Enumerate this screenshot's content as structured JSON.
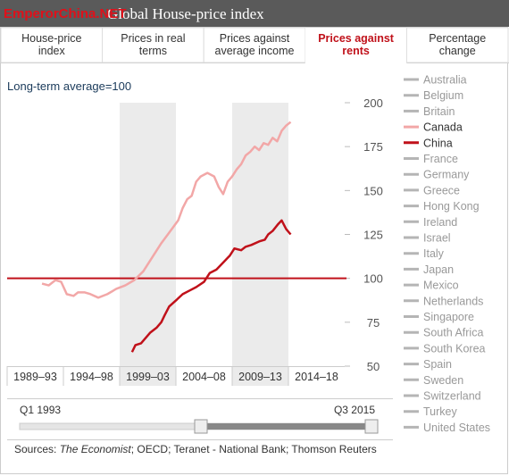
{
  "header": {
    "title": "Global House-price index",
    "watermark": "EmperorChina.NET"
  },
  "tabs": [
    "House-price index",
    "Prices in real terms",
    "Prices against average income",
    "Prices against rents",
    "Percentage change"
  ],
  "active_tab": 3,
  "chart_data": {
    "type": "line",
    "subtitle": "Long-term average=100",
    "xlim": [
      1989,
      2019
    ],
    "ylim": [
      50,
      200
    ],
    "yticks": [
      50,
      75,
      100,
      125,
      150,
      175,
      200
    ],
    "xticks": [
      {
        "value": 1989,
        "label": "1989–93"
      },
      {
        "value": 1994,
        "label": "1994–98"
      },
      {
        "value": 1999,
        "label": "1999–03"
      },
      {
        "value": 2004,
        "label": "2004–08"
      },
      {
        "value": 2009,
        "label": "2009–13"
      },
      {
        "value": 2014,
        "label": "2014–18"
      }
    ],
    "shaded_bands": [
      [
        1999,
        2004
      ],
      [
        2009,
        2014
      ]
    ],
    "reference_line": 100,
    "series": [
      {
        "name": "Canada",
        "color": "#f2a7a7",
        "x": [
          1992.1,
          1992.7,
          1993.3,
          1993.8,
          1994.3,
          1994.9,
          1995.3,
          1995.9,
          1996.4,
          1997.1,
          1997.9,
          1998.7,
          1999.5,
          2000.3,
          2001.1,
          2001.9,
          2002.7,
          2003.4,
          2004.2,
          2004.6,
          2005.0,
          2005.4,
          2005.8,
          2006.2,
          2006.8,
          2007.4,
          2007.8,
          2008.2,
          2008.6,
          2009.0,
          2009.4,
          2009.8,
          2010.2,
          2010.6,
          2011.0,
          2011.4,
          2011.8,
          2012.2,
          2012.6,
          2013.0,
          2013.4,
          2013.8,
          2014.2
        ],
        "values": [
          97,
          96,
          99,
          98,
          91,
          90,
          92,
          92,
          91,
          89,
          91,
          94,
          96,
          99,
          104,
          112,
          120,
          126,
          133,
          140,
          145,
          147,
          155,
          158,
          160,
          158,
          152,
          148,
          155,
          158,
          162,
          165,
          170,
          172,
          175,
          173,
          177,
          176,
          180,
          178,
          184,
          187,
          189
        ]
      },
      {
        "name": "China",
        "color": "#c0111a",
        "x": [
          2000.1,
          2000.4,
          2000.9,
          2001.3,
          2001.7,
          2002.3,
          2002.7,
          2003.0,
          2003.4,
          2004.1,
          2004.6,
          2005.2,
          2005.8,
          2006.5,
          2007.0,
          2007.6,
          2008.2,
          2008.8,
          2009.2,
          2009.8,
          2010.2,
          2010.7,
          2011.4,
          2011.9,
          2012.2,
          2012.6,
          2013.1,
          2013.4,
          2013.8,
          2014.2
        ],
        "values": [
          58,
          62,
          63,
          66,
          69,
          72,
          75,
          79,
          84,
          88,
          91,
          93,
          95,
          98,
          103,
          105,
          109,
          113,
          117,
          116,
          118,
          119,
          121,
          122,
          125,
          127,
          131,
          133,
          128,
          125
        ]
      }
    ]
  },
  "countries": [
    "Australia",
    "Belgium",
    "Britain",
    "Canada",
    "China",
    "France",
    "Germany",
    "Greece",
    "Hong Kong",
    "Ireland",
    "Israel",
    "Italy",
    "Japan",
    "Mexico",
    "Netherlands",
    "Singapore",
    "South Africa",
    "South Korea",
    "Spain",
    "Sweden",
    "Switzerland",
    "Turkey",
    "United States"
  ],
  "inactive_color": "#b5b5b5",
  "slider": {
    "start": "Q1 1993",
    "end": "Q3 2015"
  },
  "sources": {
    "prefix": "Sources: ",
    "italic": "The Economist",
    "rest": "; OECD; Teranet - National Bank; Thomson Reuters"
  }
}
